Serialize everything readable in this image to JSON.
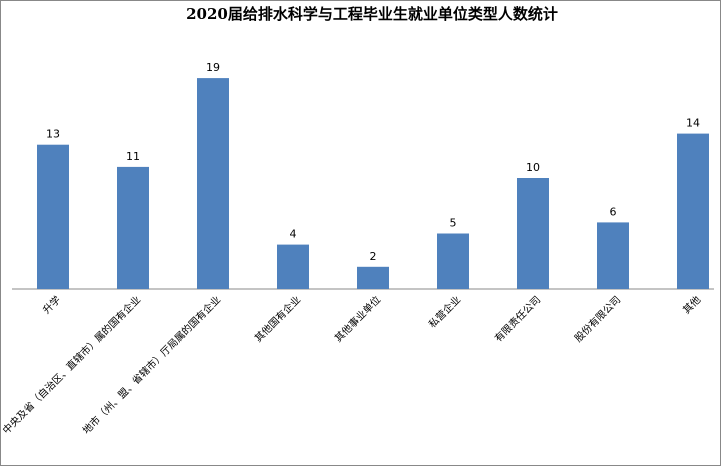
{
  "chart_data": {
    "type": "bar",
    "title": "2020届给排水科学与工程毕业生就业单位类型人数统计",
    "categories": [
      "升学",
      "中央及省（自治区、直辖市）属的国有企业",
      "地市（州、盟、省辖市）厅局属的国有企业",
      "其他国有企业",
      "其他事业单位",
      "私营企业",
      "有限责任公司",
      "股份有限公司",
      "其他"
    ],
    "values": [
      13,
      11,
      19,
      4,
      2,
      5,
      10,
      6,
      14
    ],
    "color": "#4f81bd",
    "ylim": [
      0,
      20
    ]
  }
}
